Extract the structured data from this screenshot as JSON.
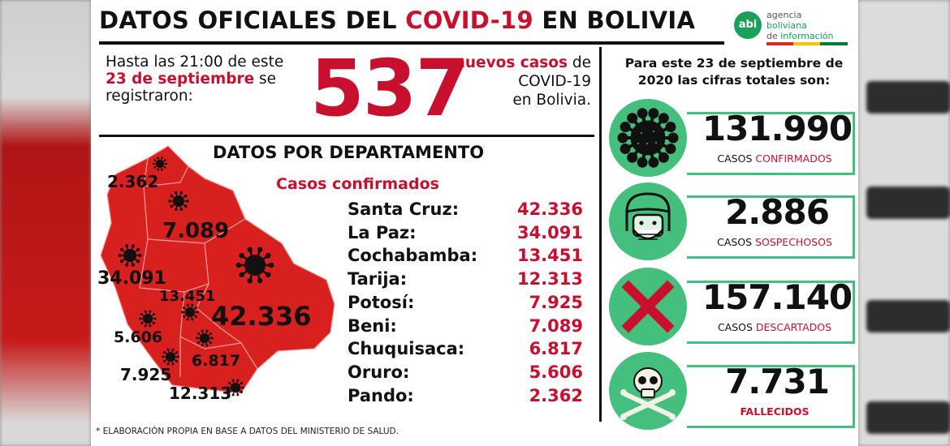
{
  "header": {
    "title_start": "DATOS OFICIALES DEL ",
    "title_highlight": "COVID-19",
    "title_end": " EN BOLIVIA"
  },
  "logo": {
    "abbr": "abi",
    "line1": "agencia",
    "line2": "boliviana",
    "line3_a": "de ",
    "line3_b": "información"
  },
  "intro": {
    "line1": "Hasta las 21:00 de este",
    "date": "23 de septiembre",
    "line2_end": " se",
    "line3": "registraron:",
    "count": "537",
    "tail1_red": "nuevos casos",
    "tail1_end": " de",
    "tail2": "COVID-19",
    "tail3": "en Bolivia."
  },
  "departments": {
    "title": "DATOS POR DEPARTAMENTO",
    "subtitle": "Casos confirmados",
    "rows": [
      {
        "name": "Santa Cruz:",
        "value": "42.336"
      },
      {
        "name": "La Paz:",
        "value": "34.091"
      },
      {
        "name": "Cochabamba:",
        "value": "13.451"
      },
      {
        "name": "Tarija:",
        "value": "12.313"
      },
      {
        "name": "Potosí:",
        "value": "7.925"
      },
      {
        "name": "Beni:",
        "value": "7.089"
      },
      {
        "name": "Chuquisaca:",
        "value": "6.817"
      },
      {
        "name": "Oruro:",
        "value": "5.606"
      },
      {
        "name": "Pando:",
        "value": "2.362"
      }
    ],
    "map_labels": {
      "pando": "2.362",
      "beni": "7.089",
      "la_paz": "34.091",
      "cochabamba": "13.451",
      "santa_cruz": "42.336",
      "oruro": "5.606",
      "chuquisaca": "6.817",
      "potosi": "7.925",
      "tarija": "12.313"
    }
  },
  "totals": {
    "heading_line1": "Para este 23 de septiembre de",
    "heading_line2": "2020 las cifras totales son:",
    "items": [
      {
        "value": "131.990",
        "label_a": "CASOS ",
        "label_b": "CONFIRMADOS",
        "icon": "virus-icon"
      },
      {
        "value": "2.886",
        "label_a": "CASOS ",
        "label_b": "SOSPECHOSOS",
        "icon": "masked-person-icon"
      },
      {
        "value": "157.140",
        "label_a": "CASOS ",
        "label_b": "DESCARTADOS",
        "icon": "red-x-icon"
      },
      {
        "value": "7.731",
        "label_a": "",
        "label_b": "FALLECIDOS",
        "icon": "skull-crossbones-icon"
      }
    ]
  },
  "footnote": "* ELABORACIÓN PROPIA EN BASE A DATOS DEL MINISTERIO DE SALUD.",
  "colors": {
    "red": "#c8102e",
    "green": "#44bf7d",
    "map_red": "#d8201f"
  }
}
